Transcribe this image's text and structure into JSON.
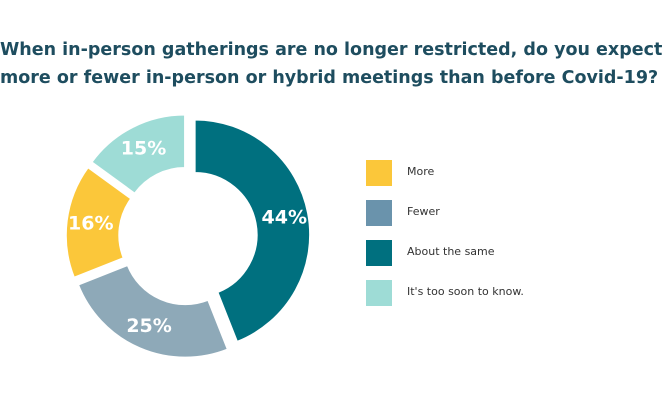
{
  "chart_data": {
    "type": "pie",
    "title_lines": [
      "When in-person gatherings are no longer restricted, do you expect",
      "more or fewer in-person or hybrid meetings than before Covid-19?"
    ],
    "categories": [
      "About the same",
      "Fewer",
      "More",
      "It's too soon to know."
    ],
    "values": [
      44,
      25,
      16,
      15
    ],
    "data_labels": [
      "44%",
      "25%",
      "16%",
      "15%"
    ],
    "colors": [
      "#00707f",
      "#8ea9b8",
      "#fbc73a",
      "#9edcd6"
    ],
    "donut": true,
    "legend_position": "right",
    "legend_order": [
      {
        "label": "More",
        "color": "#fbc73a"
      },
      {
        "label": "Fewer",
        "color": "#6a93ac"
      },
      {
        "label": "About the same",
        "color": "#00707f"
      },
      {
        "label": "It's too soon to know.",
        "color": "#9edcd6"
      }
    ]
  }
}
